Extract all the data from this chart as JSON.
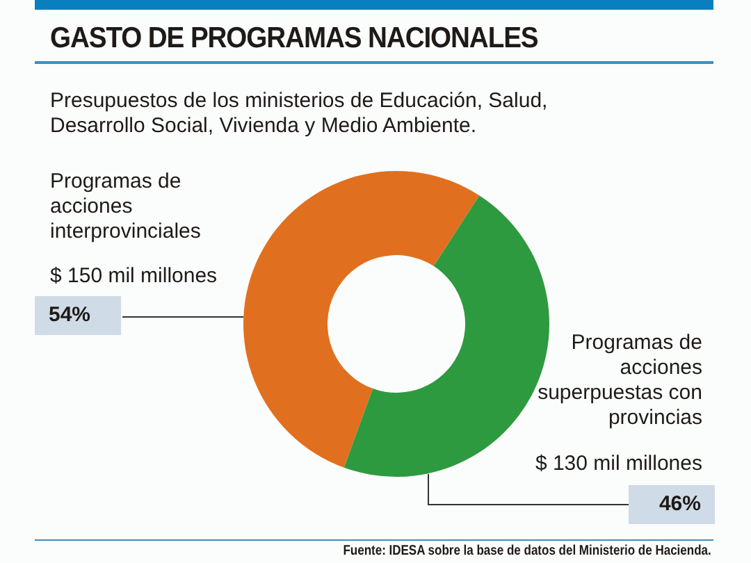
{
  "chart_data": {
    "type": "donut",
    "title": "GASTO DE PROGRAMAS NACIONALES",
    "subtitle": "Presupuestos de los ministerios de Educación, Salud, Desarrollo Social, Vivienda y Medio Ambiente.",
    "categories": [
      "Programas de acciones interprovinciales",
      "Programas de acciones superpuestas con provincias"
    ],
    "values": [
      150,
      130
    ],
    "colors": [
      "#e0701f",
      "#2e9a3f"
    ],
    "value_labels": [
      "$ 150 mil millones",
      "$ 130 mil millones"
    ],
    "annotations": [
      "54%",
      "46%",
      "Fuente: IDESA sobre la base de datos del Ministerio de Hacienda."
    ],
    "legend": false
  }
}
